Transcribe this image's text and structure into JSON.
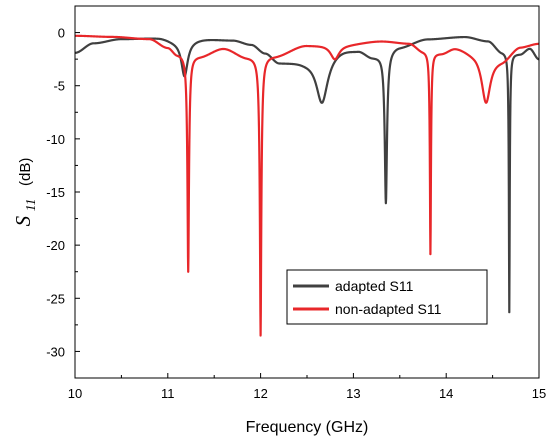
{
  "chart_data": {
    "type": "line",
    "xlabel": "Frequency (GHz)",
    "ylabel_symbol": "S",
    "ylabel_subscript": "11",
    "ylabel_unit": "(dB)",
    "xlim": [
      10,
      15
    ],
    "ylim": [
      -32.5,
      2.5
    ],
    "xticks": [
      10,
      11,
      12,
      13,
      14,
      15
    ],
    "yticks": [
      0,
      -5,
      -10,
      -15,
      -20,
      -25,
      -30
    ],
    "grid": false,
    "legend_position": "bottom-right",
    "series": [
      {
        "name": "adapted S11",
        "color": "#404040",
        "resonances": [
          {
            "f": 11.18,
            "depth": -4.1,
            "width": 0.045
          },
          {
            "f": 12.66,
            "depth": -6.6,
            "width": 0.085
          },
          {
            "f": 13.35,
            "depth": -16.0,
            "width": 0.022
          },
          {
            "f": 14.68,
            "depth": -26.3,
            "width": 0.011
          }
        ],
        "baseline": [
          [
            10.0,
            -1.9
          ],
          [
            10.2,
            -1.0
          ],
          [
            10.5,
            -0.6
          ],
          [
            10.9,
            -0.5
          ],
          [
            11.1,
            -0.8
          ],
          [
            11.4,
            -0.6
          ],
          [
            11.7,
            -0.7
          ],
          [
            11.9,
            -1.1
          ],
          [
            12.05,
            -1.9
          ],
          [
            12.2,
            -2.8
          ],
          [
            12.45,
            -2.7
          ],
          [
            12.9,
            -1.5
          ],
          [
            13.05,
            -1.6
          ],
          [
            13.2,
            -2.2
          ],
          [
            13.5,
            -1.3
          ],
          [
            13.8,
            -0.6
          ],
          [
            14.2,
            -0.4
          ],
          [
            14.45,
            -0.8
          ],
          [
            14.6,
            -1.8
          ],
          [
            14.8,
            -2.0
          ],
          [
            14.9,
            -1.5
          ],
          [
            15.0,
            -2.5
          ]
        ]
      },
      {
        "name": "non-adapted S11",
        "color": "#e8272a",
        "resonances": [
          {
            "f": 11.22,
            "depth": -22.5,
            "width": 0.018
          },
          {
            "f": 12.0,
            "depth": -28.5,
            "width": 0.02
          },
          {
            "f": 12.8,
            "depth": -2.5,
            "width": 0.06
          },
          {
            "f": 13.83,
            "depth": -20.8,
            "width": 0.012
          },
          {
            "f": 14.43,
            "depth": -6.6,
            "width": 0.065
          }
        ],
        "baseline": [
          [
            10.0,
            -0.3
          ],
          [
            10.4,
            -0.4
          ],
          [
            10.8,
            -0.6
          ],
          [
            11.0,
            -1.4
          ],
          [
            11.1,
            -2.0
          ],
          [
            11.35,
            -2.2
          ],
          [
            11.6,
            -1.5
          ],
          [
            11.85,
            -2.3
          ],
          [
            12.15,
            -2.2
          ],
          [
            12.5,
            -1.2
          ],
          [
            12.9,
            -1.1
          ],
          [
            13.3,
            -0.8
          ],
          [
            13.6,
            -1.0
          ],
          [
            13.75,
            -1.7
          ],
          [
            13.95,
            -1.9
          ],
          [
            14.1,
            -1.4
          ],
          [
            14.3,
            -1.8
          ],
          [
            14.6,
            -2.5
          ],
          [
            14.8,
            -1.3
          ],
          [
            15.0,
            -1.0
          ]
        ]
      }
    ]
  }
}
